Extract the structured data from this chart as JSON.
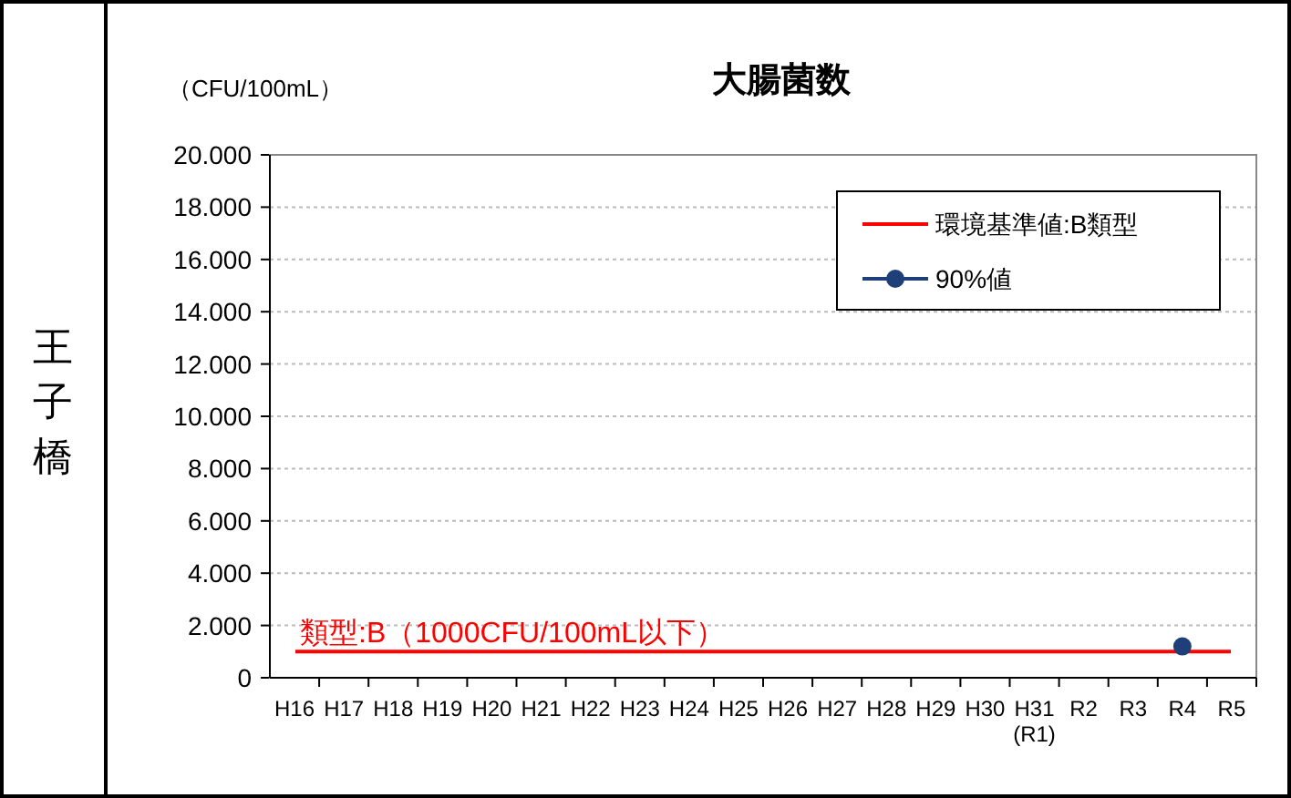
{
  "chart_data": {
    "type": "line",
    "title": "大腸菌数",
    "ylabel": "（CFU/100mL）",
    "categories": [
      "H16",
      "H17",
      "H18",
      "H19",
      "H20",
      "H21",
      "H22",
      "H23",
      "H24",
      "H25",
      "H26",
      "H27",
      "H28",
      "H29",
      "H30",
      "H31\n(R1)",
      "R2",
      "R3",
      "R4",
      "R5"
    ],
    "series": [
      {
        "name": "環境基準値:B類型",
        "color": "#ff0000",
        "marker": "none",
        "values": [
          1000,
          1000,
          1000,
          1000,
          1000,
          1000,
          1000,
          1000,
          1000,
          1000,
          1000,
          1000,
          1000,
          1000,
          1000,
          1000,
          1000,
          1000,
          1000,
          1000
        ]
      },
      {
        "name": "90%値",
        "color": "#1f3f78",
        "marker": "circle",
        "values": [
          null,
          null,
          null,
          null,
          null,
          null,
          null,
          null,
          null,
          null,
          null,
          null,
          null,
          null,
          null,
          null,
          null,
          null,
          1200,
          null
        ]
      }
    ],
    "ylim": [
      0,
      20000
    ],
    "yticks": [
      0,
      {
        "value": 2000,
        "label": "2.000"
      },
      {
        "value": 4000,
        "label": "4.000"
      },
      {
        "value": 6000,
        "label": "6.000"
      },
      {
        "value": 8000,
        "label": "8.000"
      },
      {
        "value": 10000,
        "label": "10.000"
      },
      {
        "value": 12000,
        "label": "12.000"
      },
      {
        "value": 14000,
        "label": "14.000"
      },
      {
        "value": 16000,
        "label": "16.000"
      },
      {
        "value": 18000,
        "label": "18.000"
      },
      {
        "value": 20000,
        "label": "20.000"
      }
    ],
    "grid": "y",
    "legend": "top right",
    "annotations": [
      "王子橋",
      {
        "text": "類型:B（1000CFU/100mL以下）",
        "y": 1000
      }
    ]
  }
}
